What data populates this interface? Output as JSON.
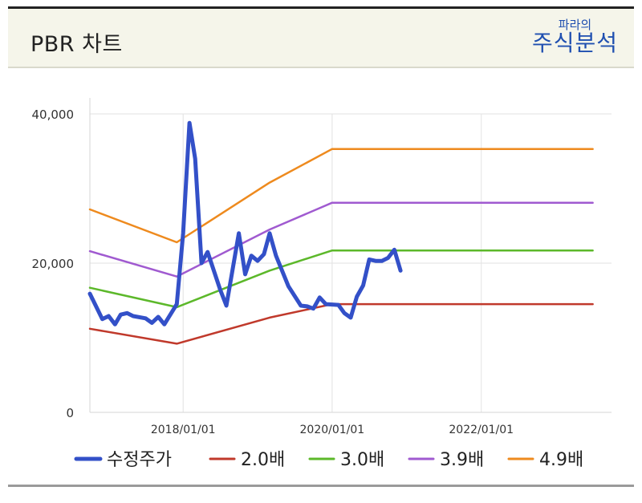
{
  "panel": {
    "title": "PBR 차트",
    "logo_top": "파라의",
    "logo_main": "주식분석"
  },
  "colors": {
    "price": "#3350c8",
    "pbr_2_0": "#c0392b",
    "pbr_3_0": "#5cb82a",
    "pbr_3_9": "#a05ad0",
    "pbr_4_9": "#ee8a1e",
    "grid": "#e2e2e2"
  },
  "chart_data": {
    "type": "line",
    "title": "PBR 차트",
    "xlabel": "",
    "ylabel": "",
    "xlim": [
      "2016-10-01",
      "2023-10-01"
    ],
    "ylim": [
      0,
      40000
    ],
    "yticks": [
      0,
      20000,
      40000
    ],
    "ytick_labels": [
      "0",
      "20,000",
      "40,000"
    ],
    "xticks": [
      "2018-01-01",
      "2020-01-01",
      "2022-01-01"
    ],
    "xtick_labels": [
      "2018/01/01",
      "2020/01/01",
      "2022/01/01"
    ],
    "grid": true,
    "legend_position": "bottom",
    "series": [
      {
        "name": "수정주가",
        "color_key": "price",
        "width": 5,
        "points": [
          [
            "2016-10-01",
            15900
          ],
          [
            "2016-12-01",
            12500
          ],
          [
            "2017-01-01",
            12900
          ],
          [
            "2017-02-01",
            11800
          ],
          [
            "2017-03-01",
            13100
          ],
          [
            "2017-04-01",
            13300
          ],
          [
            "2017-05-01",
            12900
          ],
          [
            "2017-07-01",
            12600
          ],
          [
            "2017-08-01",
            12000
          ],
          [
            "2017-09-01",
            12800
          ],
          [
            "2017-10-01",
            11800
          ],
          [
            "2017-12-01",
            14500
          ],
          [
            "2018-01-01",
            24000
          ],
          [
            "2018-02-01",
            38800
          ],
          [
            "2018-03-01",
            34000
          ],
          [
            "2018-04-01",
            20000
          ],
          [
            "2018-05-01",
            21500
          ],
          [
            "2018-07-01",
            16500
          ],
          [
            "2018-08-01",
            14300
          ],
          [
            "2018-10-01",
            24000
          ],
          [
            "2018-11-01",
            18500
          ],
          [
            "2018-12-01",
            21000
          ],
          [
            "2019-01-01",
            20300
          ],
          [
            "2019-02-01",
            21200
          ],
          [
            "2019-03-01",
            24000
          ],
          [
            "2019-04-01",
            21000
          ],
          [
            "2019-06-01",
            16900
          ],
          [
            "2019-08-01",
            14300
          ],
          [
            "2019-09-01",
            14200
          ],
          [
            "2019-10-01",
            13900
          ],
          [
            "2019-11-01",
            15400
          ],
          [
            "2019-12-01",
            14500
          ],
          [
            "2020-02-01",
            14400
          ],
          [
            "2020-03-01",
            13300
          ],
          [
            "2020-04-01",
            12700
          ],
          [
            "2020-05-01",
            15500
          ],
          [
            "2020-06-01",
            17000
          ],
          [
            "2020-07-01",
            20500
          ],
          [
            "2020-08-01",
            20300
          ],
          [
            "2020-09-01",
            20300
          ],
          [
            "2020-10-01",
            20700
          ],
          [
            "2020-11-01",
            21800
          ],
          [
            "2020-12-01",
            19000
          ]
        ]
      },
      {
        "name": "2.0배",
        "color_key": "pbr_2_0",
        "width": 2.5,
        "points": [
          [
            "2016-10-01",
            11200
          ],
          [
            "2017-12-01",
            9200
          ],
          [
            "2019-03-01",
            12700
          ],
          [
            "2020-01-01",
            14500
          ],
          [
            "2023-07-01",
            14500
          ]
        ]
      },
      {
        "name": "3.0배",
        "color_key": "pbr_3_0",
        "width": 2.5,
        "points": [
          [
            "2016-10-01",
            16700
          ],
          [
            "2017-12-01",
            14100
          ],
          [
            "2019-03-01",
            19000
          ],
          [
            "2020-01-01",
            21700
          ],
          [
            "2023-07-01",
            21700
          ]
        ]
      },
      {
        "name": "3.9배",
        "color_key": "pbr_3_9",
        "width": 2.5,
        "points": [
          [
            "2016-10-01",
            21600
          ],
          [
            "2017-12-01",
            18200
          ],
          [
            "2019-03-01",
            24500
          ],
          [
            "2020-01-01",
            28100
          ],
          [
            "2023-07-01",
            28100
          ]
        ]
      },
      {
        "name": "4.9배",
        "color_key": "pbr_4_9",
        "width": 2.5,
        "points": [
          [
            "2016-10-01",
            27200
          ],
          [
            "2017-12-01",
            22800
          ],
          [
            "2019-03-01",
            30800
          ],
          [
            "2020-01-01",
            35300
          ],
          [
            "2023-07-01",
            35300
          ]
        ]
      }
    ]
  }
}
